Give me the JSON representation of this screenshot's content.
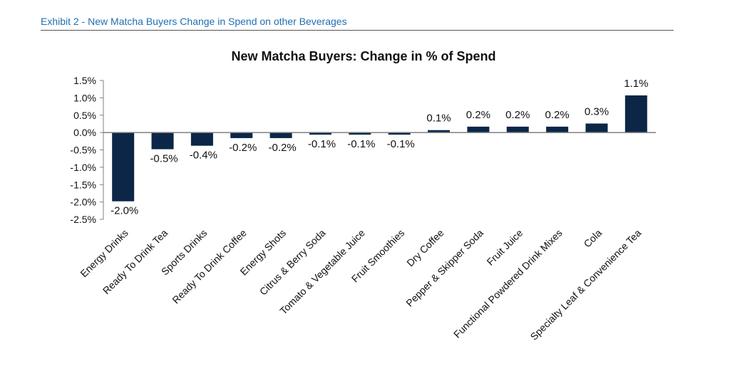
{
  "header": {
    "exhibit_title": "Exhibit 2 - New Matcha Buyers Change in Spend on other Beverages"
  },
  "chart_data": {
    "type": "bar",
    "title": "New Matcha Buyers: Change in % of Spend",
    "xlabel": "",
    "ylabel": "",
    "categories": [
      "Energy Drinks",
      "Ready To Drink Tea",
      "Sports Drinks",
      "Ready To Drink Coffee",
      "Energy Shots",
      "Citrus & Berry Soda",
      "Tomato & Vegetable Juice",
      "Fruit Smoothies",
      "Dry Coffee",
      "Pepper & Skipper Soda",
      "Fruit Juice",
      "Functional Powdered Drink Mixes",
      "Cola",
      "Specialty Leaf & Convenience Tea"
    ],
    "values": [
      -2.0,
      -0.5,
      -0.4,
      -0.2,
      -0.2,
      -0.1,
      -0.1,
      -0.1,
      0.1,
      0.2,
      0.2,
      0.2,
      0.3,
      1.1
    ],
    "plotted_values": [
      -1.98,
      -0.48,
      -0.38,
      -0.16,
      -0.16,
      -0.06,
      -0.06,
      -0.06,
      0.07,
      0.17,
      0.17,
      0.17,
      0.26,
      1.07
    ],
    "data_labels": [
      "-2.0%",
      "-0.5%",
      "-0.4%",
      "-0.2%",
      "-0.2%",
      "-0.1%",
      "-0.1%",
      "-0.1%",
      "0.1%",
      "0.2%",
      "0.2%",
      "0.2%",
      "0.3%",
      "1.1%"
    ],
    "ylim": [
      -2.5,
      1.5
    ],
    "yticks": [
      1.5,
      1.0,
      0.5,
      0.0,
      -0.5,
      -1.0,
      -1.5,
      -2.0,
      -2.5
    ],
    "ytick_labels": [
      "1.5%",
      "1.0%",
      "0.5%",
      "0.0%",
      "-0.5%",
      "-1.0%",
      "-1.5%",
      "-2.0%",
      "-2.5%"
    ],
    "grid": false,
    "legend": "none",
    "bar_color": "#0b2647"
  }
}
